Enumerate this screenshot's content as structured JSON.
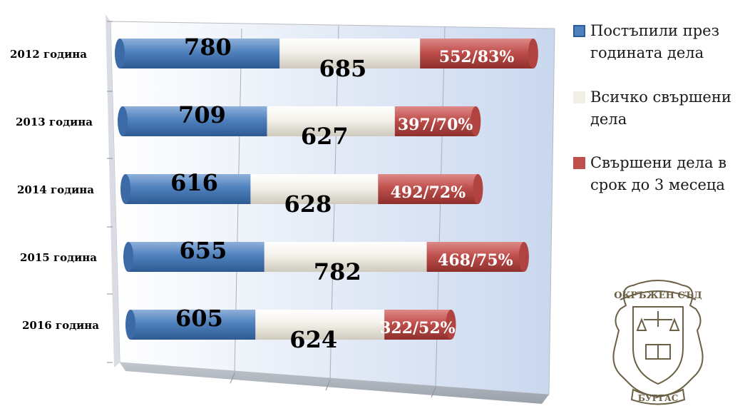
{
  "chart_data": {
    "type": "bar",
    "orientation": "horizontal",
    "stacked": true,
    "style": "3d-cylinder",
    "categories": [
      "2012 година",
      "2013 година",
      "2014 година",
      "2015 година",
      "2016 година"
    ],
    "series": [
      {
        "name": "Постъпили през годината дела",
        "values": [
          780,
          709,
          616,
          655,
          605
        ],
        "color": "#4f81bd"
      },
      {
        "name": "Всичко свършени дела",
        "values": [
          685,
          627,
          628,
          782,
          624
        ],
        "color": "#f2efe6"
      },
      {
        "name": "Свършени дела в срок до 3 месеца",
        "values": [
          552,
          397,
          492,
          468,
          322
        ],
        "color": "#c0504d"
      }
    ],
    "third_series_labels": [
      "552/83%",
      "397/70%",
      "492/72%",
      "468/75%",
      "322/52%"
    ],
    "grid": true,
    "legend_position": "right"
  },
  "legend": [
    {
      "line1": "Постъпили през",
      "line2": "годината дела",
      "color": "#4f81bd",
      "border": "#2c5c99"
    },
    {
      "line1": "Всичко свършени",
      "line2": "дела",
      "color": "#f2efe6",
      "border": "#f2efe6"
    },
    {
      "line1": "Свършени дела в",
      "line2": "срок до 3 месеца",
      "color": "#c0504d",
      "border": "#c0504d"
    }
  ],
  "seal": {
    "top_text": "ОКРЪЖЕН СЪД",
    "bottom_text": "БУРГАС",
    "color": "#6b6045"
  }
}
